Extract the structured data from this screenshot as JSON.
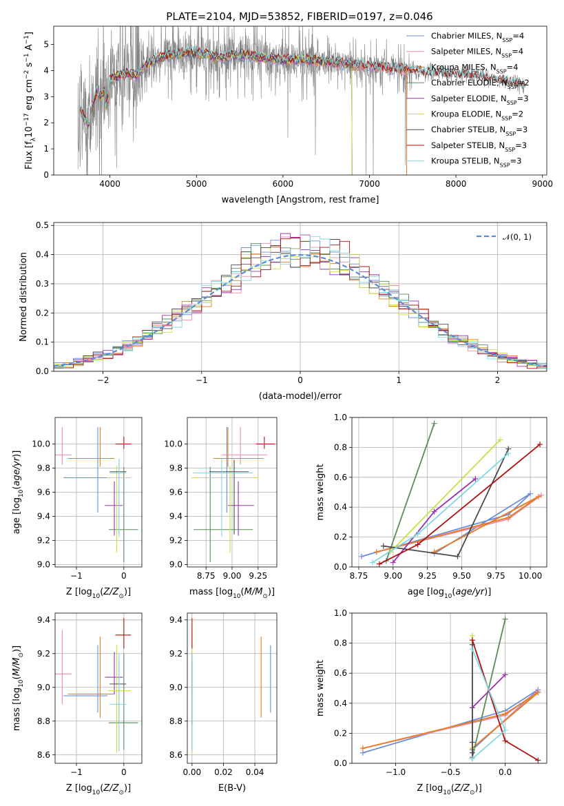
{
  "title": "PLATE=2104, MJD=53852, FIBERID=0197, z=0.046",
  "colors": {
    "Chabrier MILES": "#6c8ed8",
    "Salpeter MILES": "#e88bb0",
    "Kroupa MILES": "#e67e22",
    "Chabrier ELODIE": "#5a8a5a",
    "Salpeter ELODIE": "#9b30b0",
    "Kroupa ELODIE": "#c8e040",
    "Chabrier STELIB": "#4a4a4a",
    "Salpeter STELIB": "#b01010",
    "Kroupa STELIB": "#7fd8e0",
    "data": "#808080",
    "normal": "#5b8ad8"
  },
  "chart_data": [
    {
      "id": "spectrum",
      "type": "line",
      "title": "PLATE=2104, MJD=53852, FIBERID=0197, z=0.046",
      "xlabel": "wavelength [Angstrom, rest frame]",
      "ylabel": "Flux [f_λ 10^-17 erg cm^-2 s^-1 A^-1]",
      "ylabel_parts": [
        "Flux [f",
        "λ",
        "10",
        "−17",
        " erg cm",
        "−2",
        " s",
        "−1",
        " A",
        "−1",
        "]"
      ],
      "xlim": [
        3350,
        9050
      ],
      "ylim": [
        0,
        5.7
      ],
      "xticks": [
        4000,
        5000,
        6000,
        7000,
        8000,
        9000
      ],
      "yticks": [
        0,
        1,
        2,
        3,
        4,
        5
      ],
      "legend_position": "right",
      "legend": [
        {
          "name": "Chabrier MILES, N",
          "sub": "SSP",
          "tail": "=4"
        },
        {
          "name": "Salpeter MILES, N",
          "sub": "SSP",
          "tail": "=4"
        },
        {
          "name": "Kroupa MILES, N",
          "sub": "SSP",
          "tail": "=4"
        },
        {
          "name": "Chabrier ELODIE, N",
          "sub": "SSP",
          "tail": "=2"
        },
        {
          "name": "Salpeter ELODIE, N",
          "sub": "SSP",
          "tail": "=3"
        },
        {
          "name": "Kroupa ELODIE, N",
          "sub": "SSP",
          "tail": "=2"
        },
        {
          "name": "Chabrier STELIB, N",
          "sub": "SSP",
          "tail": "=3"
        },
        {
          "name": "Salpeter STELIB, N",
          "sub": "SSP",
          "tail": "=3"
        },
        {
          "name": "Kroupa STELIB, N",
          "sub": "SSP",
          "tail": "=3"
        }
      ],
      "continuum": [
        [
          3650,
          2.6
        ],
        [
          3700,
          2.2
        ],
        [
          3750,
          1.9
        ],
        [
          3800,
          2.7
        ],
        [
          3850,
          3.2
        ],
        [
          3900,
          3.0
        ],
        [
          3950,
          3.3
        ],
        [
          4000,
          3.6
        ],
        [
          4100,
          3.8
        ],
        [
          4200,
          3.9
        ],
        [
          4300,
          3.8
        ],
        [
          4400,
          4.2
        ],
        [
          4500,
          4.4
        ],
        [
          4700,
          4.6
        ],
        [
          4900,
          4.7
        ],
        [
          5100,
          4.6
        ],
        [
          5300,
          4.5
        ],
        [
          5500,
          4.6
        ],
        [
          5800,
          4.5
        ],
        [
          6000,
          4.4
        ],
        [
          6300,
          4.4
        ],
        [
          6600,
          4.3
        ],
        [
          6900,
          4.2
        ],
        [
          7200,
          4.1
        ],
        [
          7500,
          4.0
        ],
        [
          7800,
          3.9
        ],
        [
          8100,
          3.85
        ],
        [
          8400,
          3.7
        ],
        [
          8700,
          3.5
        ],
        [
          8800,
          3.4
        ]
      ]
    },
    {
      "id": "residuals",
      "type": "histogram",
      "xlabel": "(data-model)/error",
      "ylabel": "Normed distribution",
      "xlim": [
        -2.5,
        2.5
      ],
      "ylim": [
        0,
        0.51
      ],
      "xticks": [
        -2,
        -1,
        0,
        1,
        2
      ],
      "yticks": [
        0.0,
        0.1,
        0.2,
        0.3,
        0.4,
        0.5
      ],
      "legend_position": "upper right",
      "legend": [
        {
          "name": "𝒩(0, 1)"
        }
      ],
      "bin_width": 0.1,
      "bin_start": -2.5
    },
    {
      "id": "Z-age",
      "type": "errorbar",
      "xlabel": "Z [log10(Z/Z⊙)]",
      "ylabel": "age [log10(age/yr)]",
      "xlim": [
        -1.45,
        0.38
      ],
      "ylim": [
        8.98,
        10.22
      ],
      "xticks": [
        -1,
        0
      ],
      "yticks": [
        9.0,
        9.2,
        9.4,
        9.6,
        9.8,
        10.0
      ]
    },
    {
      "id": "mass-age",
      "type": "errorbar",
      "xlabel": "mass [log10(M/M⊙)]",
      "xlim": [
        8.57,
        9.43
      ],
      "ylim": [
        8.98,
        10.22
      ],
      "xticks": [
        8.75,
        9.0,
        9.25
      ],
      "yticks": [
        9.0,
        9.2,
        9.4,
        9.6,
        9.8,
        10.0
      ]
    },
    {
      "id": "age-weight",
      "type": "line",
      "xlabel": "age [log10(age/yr)]",
      "ylabel": "mass weight",
      "xlim": [
        8.7,
        10.12
      ],
      "ylim": [
        0,
        1.0
      ],
      "xticks": [
        8.75,
        9.0,
        9.25,
        9.5,
        9.75,
        10.0
      ],
      "yticks": [
        0.0,
        0.2,
        0.4,
        0.6,
        0.8,
        1.0
      ]
    },
    {
      "id": "Z-mass",
      "type": "errorbar",
      "xlabel": "Z [log10(Z/Z⊙)]",
      "ylabel": "mass [log10(M/M⊙)]",
      "xlim": [
        -1.45,
        0.38
      ],
      "ylim": [
        8.55,
        9.44
      ],
      "xticks": [
        -1,
        0
      ],
      "yticks": [
        8.6,
        8.8,
        9.0,
        9.2,
        9.4
      ]
    },
    {
      "id": "ebv-mass",
      "type": "errorbar",
      "xlabel": "E(B-V)",
      "xlim": [
        -0.003,
        0.054
      ],
      "ylim": [
        8.55,
        9.44
      ],
      "xticks": [
        0.0,
        0.02,
        0.04
      ],
      "yticks": [
        8.6,
        8.8,
        9.0,
        9.2,
        9.4
      ]
    },
    {
      "id": "Z-weight",
      "type": "line",
      "xlabel": "Z [log10(Z/Z⊙)]",
      "ylabel": "mass weight",
      "xlim": [
        -1.4,
        0.38
      ],
      "ylim": [
        0,
        1.0
      ],
      "xticks": [
        -1.0,
        -0.5,
        0.0
      ],
      "yticks": [
        0.0,
        0.2,
        0.4,
        0.6,
        0.8,
        1.0
      ]
    }
  ],
  "models": [
    {
      "name": "Chabrier MILES",
      "age": 9.72,
      "age_err": [
        0.29,
        0.42
      ],
      "Z": -0.55,
      "Z_err": [
        0.72,
        0.2
      ],
      "mass": 8.95,
      "mass_err": [
        0.1,
        0.3
      ],
      "ebv": 0.05,
      "ebv_err": [
        0.05,
        0.035
      ],
      "ssp": [
        {
          "age": 8.77,
          "Z": -1.3,
          "w": 0.07
        },
        {
          "age": 9.84,
          "Z": 0.0,
          "w": 0.35
        },
        {
          "age": 10.0,
          "Z": 0.3,
          "w": 0.49
        },
        {
          "age": 9.3,
          "Z": -0.3,
          "w": 0.09
        }
      ]
    },
    {
      "name": "Salpeter MILES",
      "age": 9.91,
      "age_err": [
        0.08,
        0.23
      ],
      "Z": -1.3,
      "Z_err": [
        0.5,
        0.2
      ],
      "mass": 9.08,
      "mass_err": [
        0.18,
        0.26
      ],
      "ebv": 0.0,
      "ebv_err": [
        0.0,
        0.001
      ],
      "ssp": [
        {
          "age": 8.88,
          "Z": -1.3,
          "w": 0.1
        },
        {
          "age": 9.84,
          "Z": 0.0,
          "w": 0.32
        },
        {
          "age": 10.08,
          "Z": 0.3,
          "w": 0.48
        },
        {
          "age": 9.3,
          "Z": -0.3,
          "w": 0.1
        }
      ]
    },
    {
      "name": "Kroupa MILES",
      "age": 9.88,
      "age_err": [
        0.07,
        0.26
      ],
      "Z": -0.5,
      "Z_err": [
        0.68,
        0.3
      ],
      "mass": 8.96,
      "mass_err": [
        0.14,
        0.34
      ],
      "ebv": 0.044,
      "ebv_err": [
        0.002,
        0.002
      ],
      "ssp": [
        {
          "age": 8.88,
          "Z": -1.3,
          "w": 0.1
        },
        {
          "age": 9.84,
          "Z": 0.0,
          "w": 0.33
        },
        {
          "age": 10.06,
          "Z": 0.3,
          "w": 0.47
        },
        {
          "age": 9.3,
          "Z": -0.3,
          "w": 0.1
        }
      ]
    },
    {
      "name": "Chabrier ELODIE",
      "age": 9.29,
      "age_err": [
        0.27,
        0.52
      ],
      "Z": 0.0,
      "Z_err": [
        0.32,
        0.3
      ],
      "mass": 8.79,
      "mass_err": [
        0.16,
        0.41
      ],
      "ebv": 0.0,
      "ebv_err": [
        0.0,
        0.001
      ],
      "ssp": [
        {
          "age": 8.95,
          "Z": -0.3,
          "w": 0.04
        },
        {
          "age": 9.3,
          "Z": 0.0,
          "w": 0.96
        }
      ]
    },
    {
      "name": "Salpeter ELODIE",
      "age": 9.49,
      "age_err": [
        0.25,
        0.2
      ],
      "Z": -0.2,
      "Z_err": [
        0.2,
        0.18
      ],
      "mass": 9.06,
      "mass_err": [
        0.1,
        0.15
      ],
      "ebv": 0.0,
      "ebv_err": [
        0.0,
        0.001
      ],
      "ssp": [
        {
          "age": 9.0,
          "Z": -0.3,
          "w": 0.03
        },
        {
          "age": 9.3,
          "Z": -0.3,
          "w": 0.37
        },
        {
          "age": 9.6,
          "Z": 0.0,
          "w": 0.59
        }
      ]
    },
    {
      "name": "Kroupa ELODIE",
      "age": 9.72,
      "age_err": [
        0.62,
        0.1
      ],
      "Z": -0.15,
      "Z_err": [
        0.18,
        0.3
      ],
      "mass": 8.98,
      "mass_err": [
        0.37,
        0.27
      ],
      "ebv": 0.0,
      "ebv_err": [
        0.0,
        0.001
      ],
      "ssp": [
        {
          "age": 8.98,
          "Z": -0.3,
          "w": 0.1
        },
        {
          "age": 9.78,
          "Z": -0.3,
          "w": 0.85
        }
      ]
    },
    {
      "name": "Chabrier STELIB",
      "age": 9.77,
      "age_err": [
        0.52,
        0.1
      ],
      "Z": -0.1,
      "Z_err": [
        0.2,
        0.15
      ],
      "mass": 9.02,
      "mass_err": [
        0.24,
        0.14
      ],
      "ebv": 0.0,
      "ebv_err": [
        0.27,
        0.0
      ],
      "ssp": [
        {
          "age": 8.93,
          "Z": -0.3,
          "w": 0.14
        },
        {
          "age": 9.47,
          "Z": -0.3,
          "w": 0.07
        },
        {
          "age": 9.84,
          "Z": -0.3,
          "w": 0.79
        }
      ]
    },
    {
      "name": "Salpeter STELIB",
      "age": 10.0,
      "age_err": [
        0.04,
        0.06
      ],
      "Z": 0.0,
      "Z_err": [
        0.18,
        0.15
      ],
      "mass": 9.31,
      "mass_err": [
        0.08,
        0.1
      ],
      "ebv": 0.0,
      "ebv_err": [
        0.0,
        0.001
      ],
      "ssp": [
        {
          "age": 8.9,
          "Z": 0.3,
          "w": 0.02
        },
        {
          "age": 9.18,
          "Z": 0.0,
          "w": 0.15
        },
        {
          "age": 10.07,
          "Z": -0.3,
          "w": 0.82
        }
      ]
    },
    {
      "name": "Kroupa STELIB",
      "age": 9.76,
      "age_err": [
        0.53,
        0.12
      ],
      "Z": -0.1,
      "Z_err": [
        0.2,
        0.15
      ],
      "mass": 8.9,
      "mass_err": [
        0.28,
        0.3
      ],
      "ebv": 0.0,
      "ebv_err": [
        0.27,
        0.0
      ],
      "ssp": [
        {
          "age": 8.85,
          "Z": -0.3,
          "w": 0.03
        },
        {
          "age": 9.18,
          "Z": 0.0,
          "w": 0.22
        },
        {
          "age": 9.84,
          "Z": -0.3,
          "w": 0.76
        }
      ]
    }
  ]
}
